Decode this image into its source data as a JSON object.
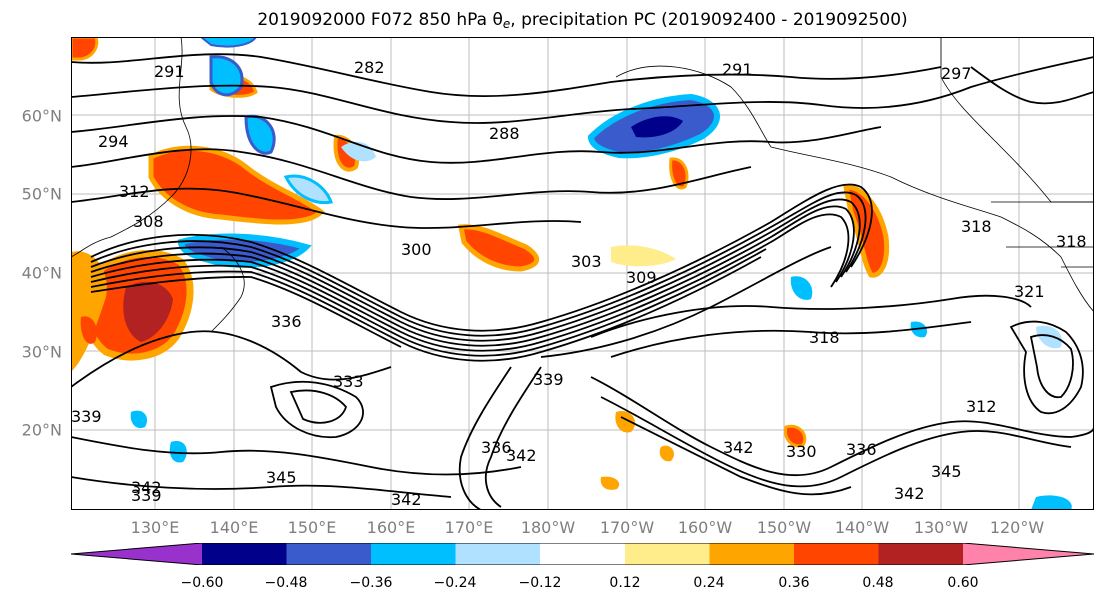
{
  "title": {
    "prefix": "2019092000 F072 850 hPa θ",
    "sub": "e",
    "suffix": ", precipitation PC (2019092400 - 2019092500)"
  },
  "map": {
    "lat_labels": [
      "60°N",
      "50°N",
      "40°N",
      "30°N",
      "20°N"
    ],
    "lon_labels": [
      "130°E",
      "140°E",
      "150°E",
      "160°E",
      "170°E",
      "180°W",
      "170°W",
      "160°W",
      "150°W",
      "140°W",
      "130°W",
      "120°W"
    ],
    "contour_labels": [
      "291",
      "282",
      "291",
      "297",
      "294",
      "288",
      "312",
      "308",
      "300",
      "303",
      "309",
      "336",
      "318",
      "333",
      "339",
      "336",
      "342",
      "342",
      "342",
      "339",
      "345",
      "342",
      "345",
      "342",
      "330",
      "336",
      "312",
      "318",
      "321",
      "339",
      "318"
    ]
  },
  "colorbar": {
    "tick_labels": [
      "−0.60",
      "−0.48",
      "−0.36",
      "−0.24",
      "−0.12",
      "0.12",
      "0.24",
      "0.36",
      "0.48",
      "0.60"
    ],
    "colors": [
      "#9932cc",
      "#00008b",
      "#3a5bcc",
      "#00bfff",
      "#b0e2ff",
      "#ffffff",
      "#ffec8b",
      "#ffa500",
      "#ff4500",
      "#b22222",
      "#ff82ab"
    ]
  }
}
